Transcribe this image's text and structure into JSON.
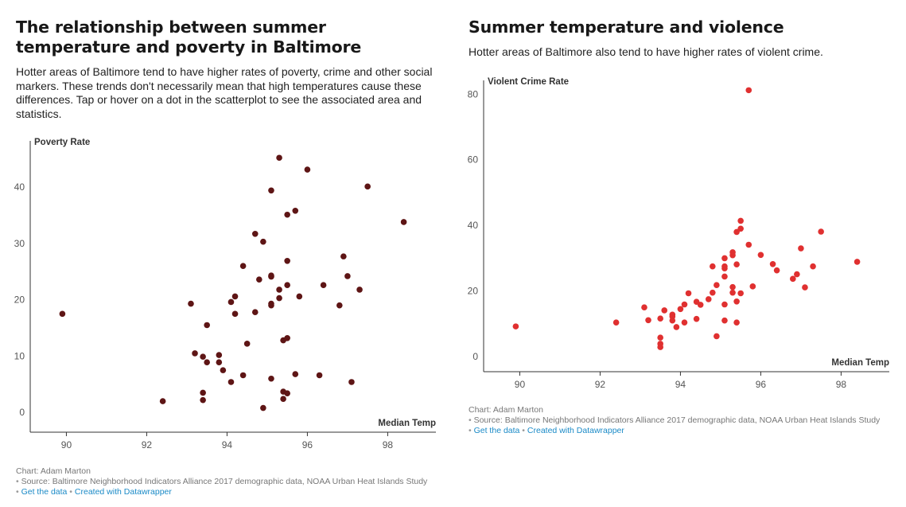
{
  "left": {
    "title": "The relationship between summer temperature and poverty in Baltimore",
    "description": "Hotter areas of Baltimore tend to have higher rates of poverty, crime and other social markers. These trends don't necessarily mean that high temperatures cause these differences. Tap or hover on a dot in the scatterplot to see the associated area and statistics.",
    "footer": {
      "byline": "Chart: Adam Marton",
      "source": "Source: Baltimore Neighborhood Indicators Alliance 2017 demographic data, NOAA Urban Heat Islands Study",
      "get_data": "Get the data",
      "created_with": "Created with Datawrapper"
    }
  },
  "right": {
    "title": "Summer temperature and violence",
    "description": "Hotter areas of Baltimore also tend to have higher rates of violent crime.",
    "footer": {
      "byline": "Chart: Adam Marton",
      "source": "Source: Baltimore Neighborhood Indicators Alliance 2017 demographic data, NOAA Urban Heat Islands Study",
      "get_data": "Get the data",
      "created_with": "Created with Datawrapper"
    }
  },
  "colors": {
    "poverty_dots": "#5e1515",
    "crime_dots": "#e03030",
    "axis": "#333333"
  },
  "chart_data": [
    {
      "type": "scatter",
      "title": "The relationship between summer temperature and poverty in Baltimore",
      "xlabel": "Median Temp",
      "ylabel": "Poverty Rate",
      "xlim": [
        89.1,
        99.2
      ],
      "ylim": [
        -3.5,
        48.2
      ],
      "xticks": [
        90,
        92,
        94,
        96,
        98
      ],
      "yticks": [
        0,
        10,
        20,
        30,
        40
      ],
      "grid": false,
      "points": [
        [
          89.9,
          17.5
        ],
        [
          92.4,
          2.0
        ],
        [
          93.1,
          19.3
        ],
        [
          93.2,
          10.5
        ],
        [
          93.4,
          9.9
        ],
        [
          93.5,
          8.9
        ],
        [
          93.4,
          3.5
        ],
        [
          93.4,
          2.2
        ],
        [
          93.5,
          15.5
        ],
        [
          93.8,
          10.2
        ],
        [
          93.8,
          8.9
        ],
        [
          93.9,
          7.5
        ],
        [
          94.1,
          19.6
        ],
        [
          94.1,
          5.4
        ],
        [
          94.2,
          17.5
        ],
        [
          94.2,
          20.6
        ],
        [
          94.4,
          6.6
        ],
        [
          94.4,
          26.0
        ],
        [
          94.5,
          12.2
        ],
        [
          94.7,
          17.8
        ],
        [
          94.7,
          31.7
        ],
        [
          94.8,
          23.6
        ],
        [
          94.9,
          30.3
        ],
        [
          94.9,
          0.8
        ],
        [
          95.1,
          39.4
        ],
        [
          95.1,
          24.1
        ],
        [
          95.1,
          24.3
        ],
        [
          95.1,
          19.0
        ],
        [
          95.1,
          19.3
        ],
        [
          95.1,
          6.0
        ],
        [
          95.3,
          45.2
        ],
        [
          95.3,
          21.8
        ],
        [
          95.3,
          20.3
        ],
        [
          95.4,
          12.8
        ],
        [
          95.4,
          2.4
        ],
        [
          95.4,
          3.7
        ],
        [
          95.5,
          3.4
        ],
        [
          95.5,
          35.1
        ],
        [
          95.5,
          26.9
        ],
        [
          95.5,
          22.6
        ],
        [
          95.5,
          13.2
        ],
        [
          95.7,
          35.8
        ],
        [
          95.7,
          6.8
        ],
        [
          95.8,
          20.6
        ],
        [
          96.0,
          43.1
        ],
        [
          96.3,
          6.6
        ],
        [
          96.4,
          22.6
        ],
        [
          96.8,
          19.0
        ],
        [
          96.9,
          27.7
        ],
        [
          97.0,
          24.2
        ],
        [
          97.1,
          5.4
        ],
        [
          97.3,
          21.8
        ],
        [
          97.5,
          40.1
        ],
        [
          98.4,
          33.8
        ]
      ]
    },
    {
      "type": "scatter",
      "title": "Summer temperature and violence",
      "xlabel": "Median Temp",
      "ylabel": "Violent Crime Rate",
      "xlim": [
        89.1,
        99.2
      ],
      "ylim": [
        -4.6,
        84.2
      ],
      "xticks": [
        90,
        92,
        94,
        96,
        98
      ],
      "yticks": [
        0,
        20,
        40,
        60,
        80
      ],
      "grid": false,
      "points": [
        [
          89.9,
          9.2
        ],
        [
          92.4,
          10.4
        ],
        [
          93.1,
          15.0
        ],
        [
          93.2,
          11.1
        ],
        [
          93.5,
          2.9
        ],
        [
          93.5,
          3.9
        ],
        [
          93.5,
          5.8
        ],
        [
          93.5,
          11.6
        ],
        [
          93.6,
          14.1
        ],
        [
          93.8,
          11.0
        ],
        [
          93.8,
          12.2
        ],
        [
          93.9,
          9.0
        ],
        [
          93.8,
          12.8
        ],
        [
          94.0,
          14.5
        ],
        [
          94.1,
          10.4
        ],
        [
          94.1,
          15.9
        ],
        [
          94.2,
          19.3
        ],
        [
          94.4,
          11.5
        ],
        [
          94.4,
          16.7
        ],
        [
          94.5,
          15.8
        ],
        [
          94.7,
          17.5
        ],
        [
          94.8,
          19.5
        ],
        [
          94.8,
          27.5
        ],
        [
          94.9,
          21.8
        ],
        [
          94.9,
          6.2
        ],
        [
          95.1,
          11.0
        ],
        [
          95.1,
          15.9
        ],
        [
          95.1,
          24.4
        ],
        [
          95.1,
          26.9
        ],
        [
          95.1,
          27.5
        ],
        [
          95.1,
          30.0
        ],
        [
          95.3,
          19.5
        ],
        [
          95.3,
          21.2
        ],
        [
          95.3,
          30.9
        ],
        [
          95.3,
          31.8
        ],
        [
          95.4,
          16.8
        ],
        [
          95.4,
          10.4
        ],
        [
          95.4,
          28.1
        ],
        [
          95.4,
          38.0
        ],
        [
          95.5,
          41.4
        ],
        [
          95.5,
          39.0
        ],
        [
          95.5,
          19.3
        ],
        [
          95.7,
          34.1
        ],
        [
          95.7,
          81.2
        ],
        [
          95.8,
          21.4
        ],
        [
          96.0,
          31.0
        ],
        [
          96.3,
          28.2
        ],
        [
          96.4,
          26.3
        ],
        [
          96.8,
          23.7
        ],
        [
          96.9,
          25.1
        ],
        [
          97.0,
          33.0
        ],
        [
          97.1,
          21.1
        ],
        [
          97.3,
          27.5
        ],
        [
          97.5,
          38.1
        ],
        [
          98.4,
          28.9
        ]
      ]
    }
  ]
}
